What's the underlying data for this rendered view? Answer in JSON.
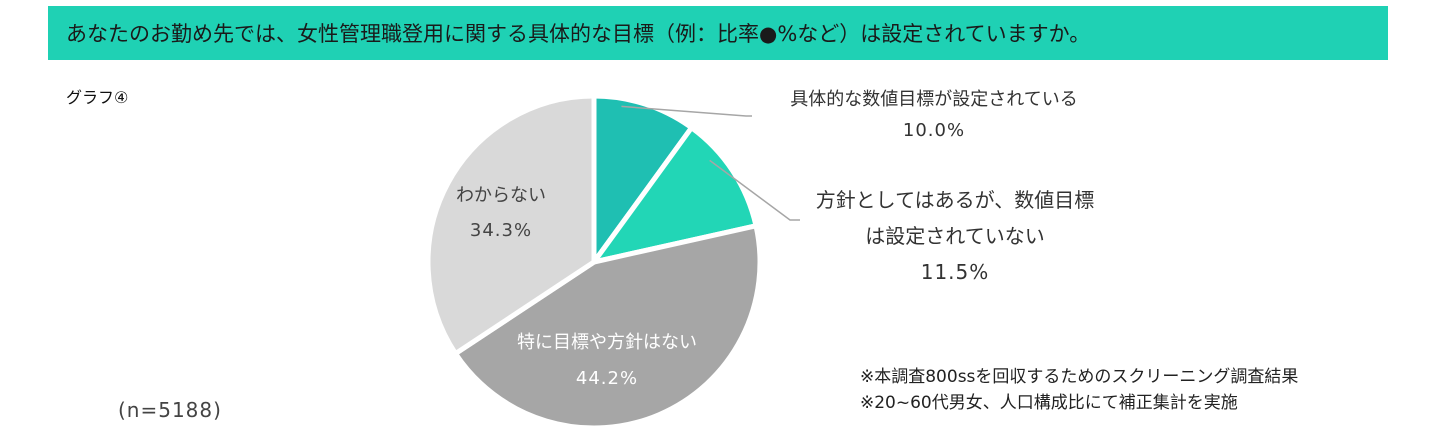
{
  "header": {
    "question": "あなたのお勤め先では、女性管理職登用に関する具体的な目標（例：比率●%など）は設定されていますか。"
  },
  "graph_label": "グラフ④",
  "sample_size": "(n=5188)",
  "notes": [
    "※本調査800ssを回収するためのスクリーニング調査結果",
    "※20~60代男女、人口構成比にて補正集計を実施"
  ],
  "chart_data": {
    "type": "pie",
    "title": "",
    "slices": [
      {
        "label": "具体的な数値目標が設定されている",
        "value": 10.0,
        "value_label": "10.0%",
        "color": "#1fbfb2",
        "label_lines": [
          "具体的な数値目標が設定されている"
        ]
      },
      {
        "label": "方針としてはあるが、数値目標は設定されていない",
        "value": 11.5,
        "value_label": "11.5%",
        "color": "#22d6b6",
        "label_lines": [
          "方針としてはあるが、数値目標",
          "は設定されていない"
        ]
      },
      {
        "label": "特に目標や方針はない",
        "value": 44.2,
        "value_label": "44.2%",
        "color": "#a6a6a6",
        "label_lines": [
          "特に目標や方針はない"
        ]
      },
      {
        "label": "わからない",
        "value": 34.3,
        "value_label": "34.3%",
        "color": "#d9d9d9",
        "label_lines": [
          "わからない"
        ]
      }
    ],
    "start": "12 o'clock",
    "direction": "clockwise"
  }
}
